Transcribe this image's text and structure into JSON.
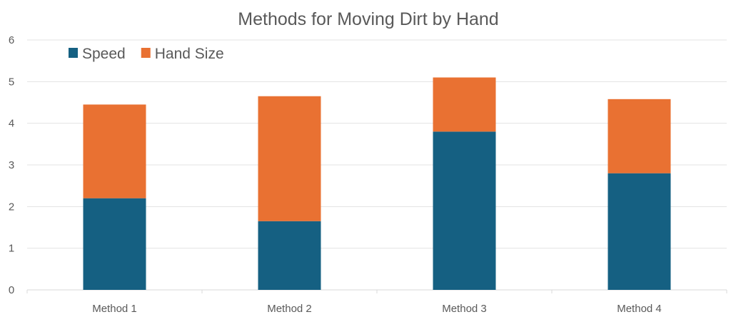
{
  "chart_data": {
    "type": "bar",
    "stacked": true,
    "title": "Methods for Moving Dirt by Hand",
    "xlabel": "",
    "ylabel": "",
    "categories": [
      "Method 1",
      "Method 2",
      "Method 3",
      "Method 4"
    ],
    "series": [
      {
        "name": "Speed",
        "values": [
          2.2,
          1.65,
          3.8,
          2.8
        ],
        "color": "#156082"
      },
      {
        "name": "Hand Size",
        "values": [
          2.25,
          3.0,
          1.3,
          1.78
        ],
        "color": "#E97132"
      }
    ],
    "ylim": [
      0,
      6
    ],
    "yticks": [
      "0",
      "1",
      "2",
      "3",
      "4",
      "5",
      "6"
    ],
    "grid": true,
    "legend_position": "top-left"
  }
}
